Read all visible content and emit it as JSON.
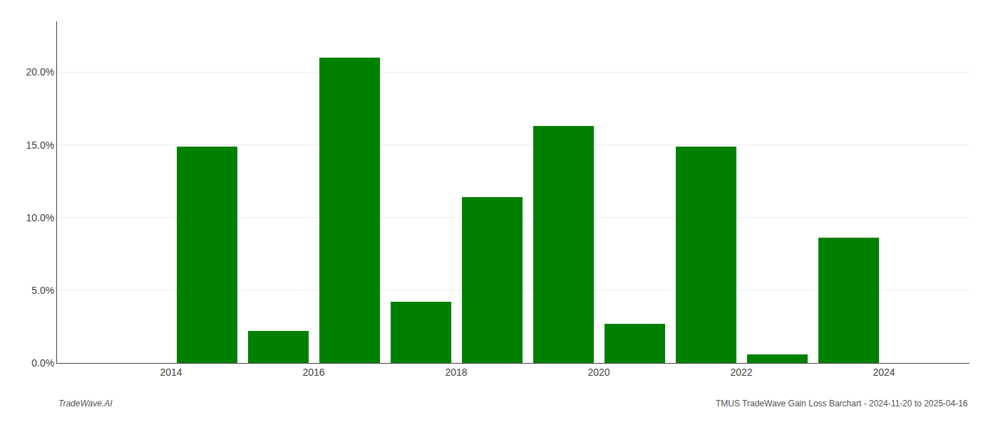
{
  "chart_data": {
    "type": "bar",
    "x": [
      2013,
      2014,
      2015,
      2016,
      2017,
      2018,
      2019,
      2020,
      2021,
      2022,
      2023,
      2024
    ],
    "values": [
      0.0,
      0.149,
      0.022,
      0.21,
      0.042,
      0.114,
      0.163,
      0.027,
      0.149,
      0.006,
      0.086,
      0.0
    ],
    "color": "#008000",
    "xlim": [
      2012.4,
      2025.2
    ],
    "xticks": [
      2014,
      2016,
      2018,
      2020,
      2022,
      2024
    ],
    "ylim": [
      0,
      0.235
    ],
    "yticks": [
      {
        "value": 0.0,
        "label": "0.0%"
      },
      {
        "value": 0.05,
        "label": "5.0%"
      },
      {
        "value": 0.1,
        "label": "10.0%"
      },
      {
        "value": 0.15,
        "label": "15.0%"
      },
      {
        "value": 0.2,
        "label": "20.0%"
      }
    ],
    "grid": true,
    "annotations": [
      "TradeWave.AI",
      "TMUS TradeWave Gain Loss Barchart - 2024-11-20 to 2025-04-16"
    ]
  }
}
